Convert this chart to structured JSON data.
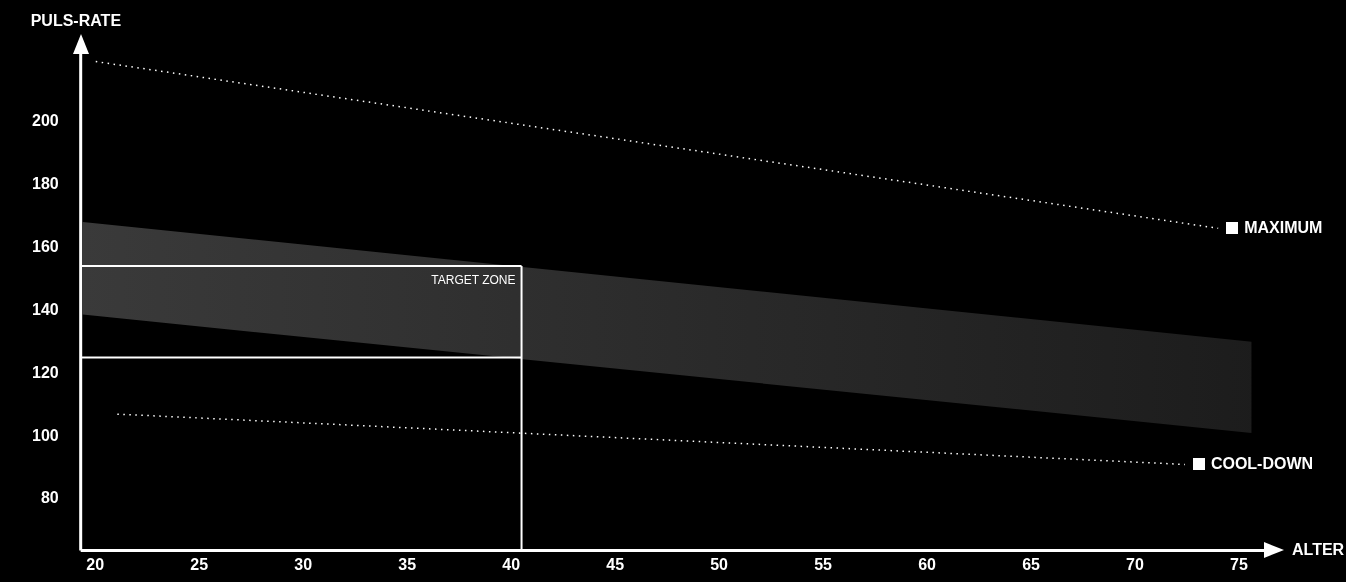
{
  "chart_data": {
    "type": "line",
    "xlabel": "ALTER",
    "ylabel": "PULS-RATE",
    "xlim": [
      19.3,
      76.3
    ],
    "ylim": [
      63.7,
      222
    ],
    "xticks": [
      20,
      25,
      30,
      35,
      40,
      45,
      50,
      55,
      60,
      65,
      70,
      75
    ],
    "yticks": [
      80,
      100,
      120,
      140,
      160,
      180,
      200
    ],
    "grid": false,
    "legend": "right",
    "marker": "none",
    "series": [
      {
        "type": "line",
        "color": "#3a3a3a",
        "x": [
          19.4,
          75.6
        ],
        "values": [
          null,
          null
        ],
        "upper": [
          168,
          130
        ],
        "lower": [
          138.6,
          101
        ]
      },
      {
        "name": "MAXIMUM",
        "color": "#ffffff",
        "line_style": "dotted",
        "x": [
          20,
          74
        ],
        "values": [
          219,
          166
        ]
      },
      {
        "name": "COOL-DOWN",
        "color": "#ffffff",
        "line_style": "dotted",
        "x": [
          21,
          72.4
        ],
        "values": [
          107,
          91
        ]
      }
    ],
    "ref_lines": [
      {
        "axis": "y",
        "value": 154,
        "label": "TARGET ZONE",
        "color": "#ffffff"
      },
      {
        "axis": "y",
        "value": 125,
        "label": null,
        "color": "#ffffff"
      },
      {
        "axis": "x",
        "value": 40.5,
        "label": null,
        "color": "#ffffff"
      }
    ]
  }
}
